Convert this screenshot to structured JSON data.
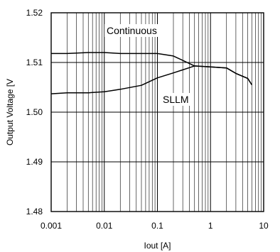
{
  "chart_data": {
    "type": "line",
    "xlabel": "Iout [A]",
    "ylabel": "Output Voltage [V",
    "xscale": "log",
    "xlim": [
      0.001,
      10
    ],
    "ylim": [
      1.48,
      1.52
    ],
    "xticks": [
      "0.001",
      "0.01",
      "0.1",
      "1",
      "10"
    ],
    "yticks": [
      "1.48",
      "1.49",
      "1.50",
      "1.51",
      "1.52"
    ],
    "grid": true,
    "series": [
      {
        "name": "Continuous",
        "x": [
          0.001,
          0.002,
          0.005,
          0.01,
          0.02,
          0.05,
          0.1,
          0.2,
          0.5,
          1,
          2,
          3,
          5,
          6
        ],
        "y": [
          1.5118,
          1.5118,
          1.512,
          1.512,
          1.5118,
          1.5118,
          1.5118,
          1.5113,
          1.5093,
          1.5091,
          1.5089,
          1.5078,
          1.5068,
          1.5055
        ]
      },
      {
        "name": "SLLM",
        "x": [
          0.001,
          0.002,
          0.005,
          0.01,
          0.02,
          0.05,
          0.1,
          0.2,
          0.5,
          1,
          2,
          3,
          5,
          6
        ],
        "y": [
          1.5037,
          1.5039,
          1.5039,
          1.5041,
          1.5046,
          1.5054,
          1.5069,
          1.5079,
          1.5093,
          1.5091,
          1.5089,
          1.5078,
          1.5068,
          1.5055
        ]
      }
    ],
    "annotations": [
      "Continuous",
      "SLLM"
    ]
  }
}
